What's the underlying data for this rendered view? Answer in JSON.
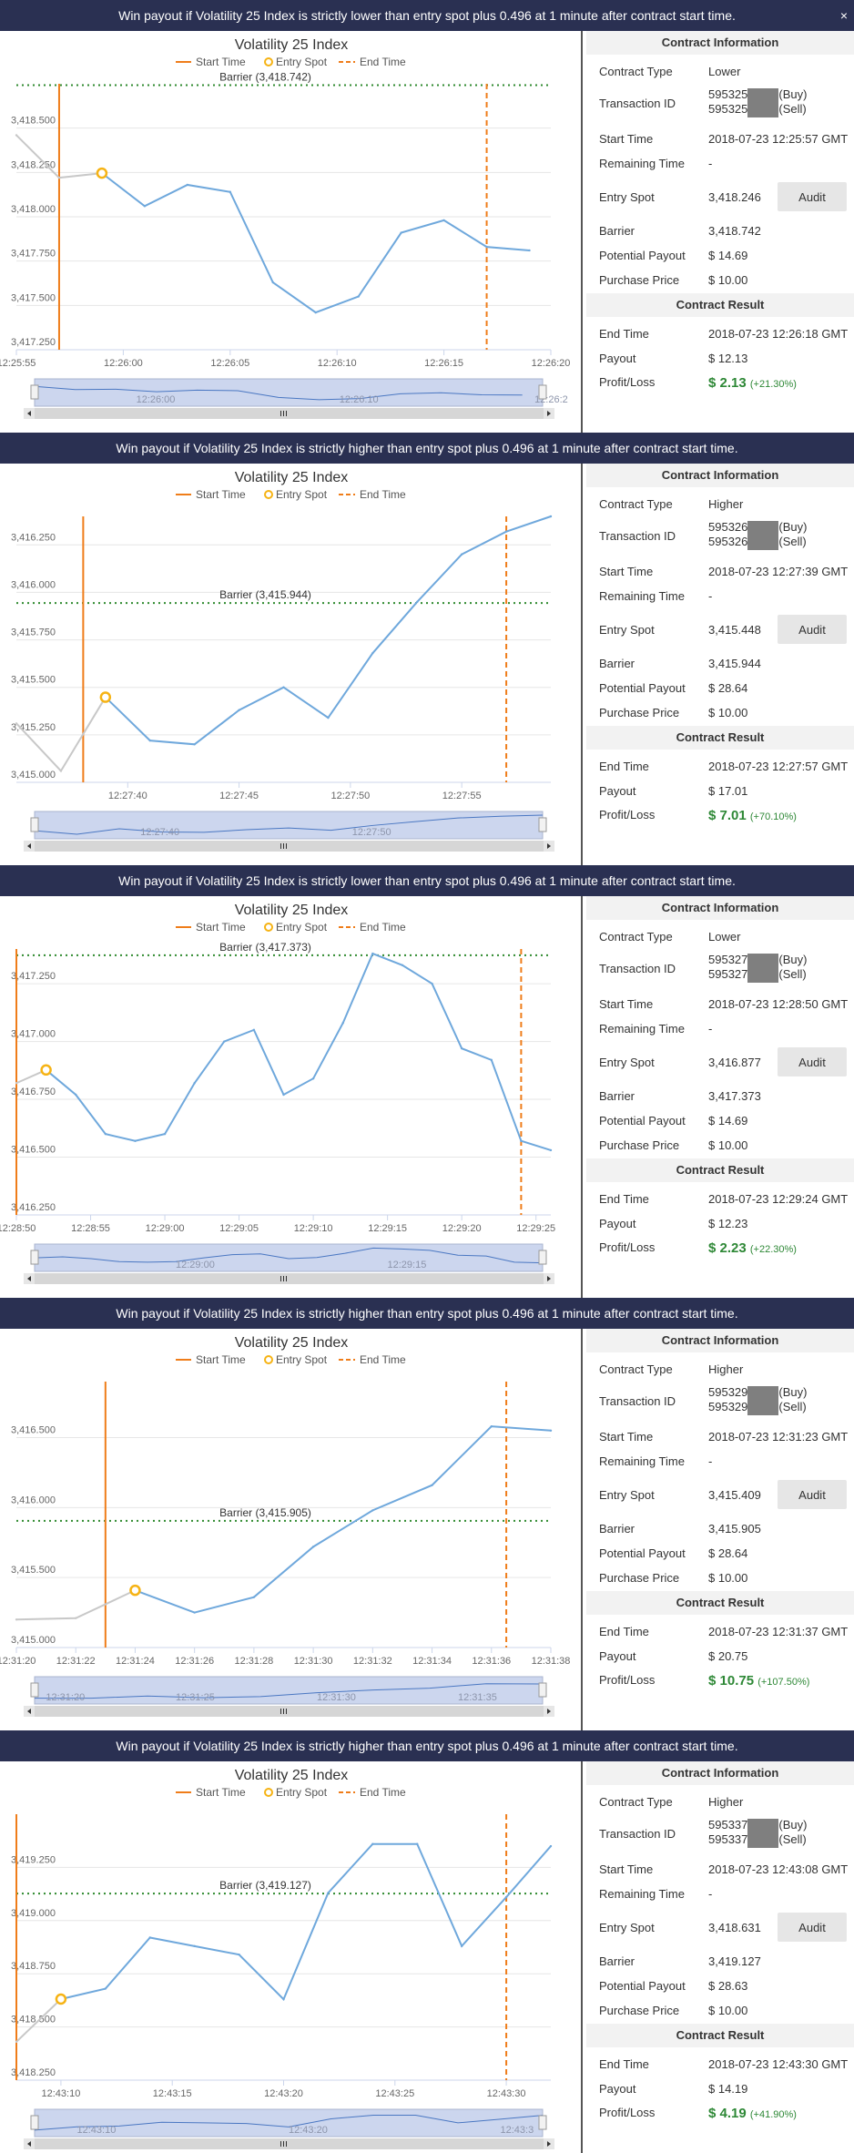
{
  "close_icon_glyph": "×",
  "colors": {
    "banner_bg": "#2a3052",
    "series": "#6fa8dc",
    "pre_series": "#c8c8c8",
    "start_line": "#ef7d1a",
    "end_line": "#ef7d1a",
    "barrier": "#2f8a2f",
    "entry_marker": "#f6b314",
    "profit": "#2e8836"
  },
  "contracts": [
    {
      "banner": "Win payout if Volatility 25 Index is strictly lower than entry spot plus 0.496 at 1 minute after contract start time.",
      "info_title": "Contract Information",
      "labels": {
        "contract_type": "Contract Type",
        "transaction_id": "Transaction ID",
        "start_time": "Start Time",
        "remaining_time": "Remaining Time",
        "entry_spot": "Entry Spot",
        "barrier": "Barrier",
        "potential_payout": "Potential Payout",
        "purchase_price": "Purchase Price",
        "end_time": "End Time",
        "payout": "Payout",
        "profit_loss": "Profit/Loss"
      },
      "contract_type": "Lower",
      "tx_buy_prefix": "595325",
      "tx_sell_prefix": "595325",
      "tx_buy_tag": "(Buy)",
      "tx_sell_tag": "(Sell)",
      "start_time": "2018-07-23 12:25:57 GMT",
      "remaining_time": "-",
      "entry_spot": "3,418.246",
      "audit_label": "Audit",
      "barrier": "3,418.742",
      "potential_payout": "$ 14.69",
      "purchase_price": "$ 10.00",
      "result_title": "Contract Result",
      "end_time": "2018-07-23 12:26:18 GMT",
      "payout": "$ 12.13",
      "profit": "$ 2.13",
      "profit_pct": "(+21.30%)",
      "chart_data": {
        "type": "line",
        "title": "Volatility 25 Index",
        "legend": [
          "Start Time",
          "Entry Spot",
          "End Time"
        ],
        "barrier_label": "Barrier (3,418.742)",
        "barrier": 3418.742,
        "x": [
          "12:25:55",
          "12:25:57",
          "12:25:59",
          "12:26:01",
          "12:26:03",
          "12:26:05",
          "12:26:07",
          "12:26:09",
          "12:26:11",
          "12:26:13",
          "12:26:15",
          "12:26:17",
          "12:26:19"
        ],
        "x_num": [
          0,
          2,
          4,
          6,
          8,
          10,
          12,
          14,
          16,
          18,
          20,
          22,
          24
        ],
        "y": [
          3418.46,
          3418.22,
          3418.246,
          3418.06,
          3418.18,
          3418.14,
          3417.63,
          3417.46,
          3417.55,
          3417.91,
          3417.98,
          3417.83,
          3417.81
        ],
        "pre_points": 3,
        "entry_index": 2,
        "start_x": 2,
        "end_x": 22,
        "xlim": [
          0,
          25
        ],
        "ylim": [
          3417.25,
          3418.75
        ],
        "y_ticks": [
          3417.25,
          3417.5,
          3417.75,
          3418.0,
          3418.25,
          3418.5
        ],
        "y_tick_labels": [
          "3,417.250",
          "3,417.500",
          "3,417.750",
          "3,418.000",
          "3,418.250",
          "3,418.500"
        ],
        "x_ticks": [
          0,
          5,
          10,
          15,
          20,
          25
        ],
        "x_tick_labels": [
          "12:25:55",
          "12:26:00",
          "12:26:05",
          "12:26:10",
          "12:26:15",
          "12:26:20"
        ],
        "nav_labels": [
          "12:26:00",
          "12:26:10",
          "12:26:2"
        ],
        "nav_label_x": [
          5,
          15,
          24.6
        ],
        "grid": true
      }
    },
    {
      "banner": "Win payout if Volatility 25 Index is strictly higher than entry spot plus 0.496 at 1 minute after contract start time.",
      "info_title": "Contract Information",
      "labels": {
        "contract_type": "Contract Type",
        "transaction_id": "Transaction ID",
        "start_time": "Start Time",
        "remaining_time": "Remaining Time",
        "entry_spot": "Entry Spot",
        "barrier": "Barrier",
        "potential_payout": "Potential Payout",
        "purchase_price": "Purchase Price",
        "end_time": "End Time",
        "payout": "Payout",
        "profit_loss": "Profit/Loss"
      },
      "contract_type": "Higher",
      "tx_buy_prefix": "595326",
      "tx_sell_prefix": "595326",
      "tx_buy_tag": "(Buy)",
      "tx_sell_tag": "(Sell)",
      "start_time": "2018-07-23 12:27:39 GMT",
      "remaining_time": "-",
      "entry_spot": "3,415.448",
      "audit_label": "Audit",
      "barrier": "3,415.944",
      "potential_payout": "$ 28.64",
      "purchase_price": "$ 10.00",
      "result_title": "Contract Result",
      "end_time": "2018-07-23 12:27:57 GMT",
      "payout": "$ 17.01",
      "profit": "$ 7.01",
      "profit_pct": "(+70.10%)",
      "chart_data": {
        "type": "line",
        "title": "Volatility 25 Index",
        "legend": [
          "Start Time",
          "Entry Spot",
          "End Time"
        ],
        "barrier_label": "Barrier (3,415.944)",
        "barrier": 3415.944,
        "x": [
          "12:27:35",
          "12:27:37",
          "12:27:39",
          "12:27:41",
          "12:27:43",
          "12:27:45",
          "12:27:47",
          "12:27:49",
          "12:27:51",
          "12:27:53",
          "12:27:55",
          "12:27:57",
          "12:27:59"
        ],
        "x_num": [
          0,
          2,
          4,
          6,
          8,
          10,
          12,
          14,
          16,
          18,
          20,
          22,
          24
        ],
        "y": [
          3415.31,
          3415.06,
          3415.448,
          3415.22,
          3415.2,
          3415.38,
          3415.5,
          3415.34,
          3415.68,
          3415.95,
          3416.2,
          3416.32,
          3416.4
        ],
        "pre_points": 3,
        "entry_index": 2,
        "start_x": 3,
        "end_x": 22,
        "xlim": [
          0,
          24
        ],
        "ylim": [
          3415.0,
          3416.4
        ],
        "y_ticks": [
          3415.0,
          3415.25,
          3415.5,
          3415.75,
          3416.0,
          3416.25
        ],
        "y_tick_labels": [
          "3,415.000",
          "3,415.250",
          "3,415.500",
          "3,415.750",
          "3,416.000",
          "3,416.250"
        ],
        "x_ticks": [
          5,
          10,
          15,
          20
        ],
        "x_tick_labels": [
          "12:27:40",
          "12:27:45",
          "12:27:50",
          "12:27:55"
        ],
        "nav_labels": [
          "12:27:40",
          "12:27:50"
        ],
        "nav_label_x": [
          5,
          15
        ],
        "grid": true
      }
    },
    {
      "banner": "Win payout if Volatility 25 Index is strictly lower than entry spot plus 0.496 at 1 minute after contract start time.",
      "info_title": "Contract Information",
      "labels": {
        "contract_type": "Contract Type",
        "transaction_id": "Transaction ID",
        "start_time": "Start Time",
        "remaining_time": "Remaining Time",
        "entry_spot": "Entry Spot",
        "barrier": "Barrier",
        "potential_payout": "Potential Payout",
        "purchase_price": "Purchase Price",
        "end_time": "End Time",
        "payout": "Payout",
        "profit_loss": "Profit/Loss"
      },
      "contract_type": "Lower",
      "tx_buy_prefix": "595327",
      "tx_sell_prefix": "595327",
      "tx_buy_tag": "(Buy)",
      "tx_sell_tag": "(Sell)",
      "start_time": "2018-07-23 12:28:50 GMT",
      "remaining_time": "-",
      "entry_spot": "3,416.877",
      "audit_label": "Audit",
      "barrier": "3,417.373",
      "potential_payout": "$ 14.69",
      "purchase_price": "$ 10.00",
      "result_title": "Contract Result",
      "end_time": "2018-07-23 12:29:24 GMT",
      "payout": "$ 12.23",
      "profit": "$ 2.23",
      "profit_pct": "(+22.30%)",
      "chart_data": {
        "type": "line",
        "title": "Volatility 25 Index",
        "legend": [
          "Start Time",
          "Entry Spot",
          "End Time"
        ],
        "barrier_label": "Barrier (3,417.373)",
        "barrier": 3417.373,
        "x": [
          "12:28:50",
          "12:28:52",
          "12:28:54",
          "12:28:56",
          "12:28:58",
          "12:29:00",
          "12:29:02",
          "12:29:04",
          "12:29:06",
          "12:29:08",
          "12:29:10",
          "12:29:12",
          "12:29:14",
          "12:29:16",
          "12:29:18",
          "12:29:20",
          "12:29:22",
          "12:29:24",
          "12:29:26"
        ],
        "x_num": [
          0,
          2,
          4,
          6,
          8,
          10,
          12,
          14,
          16,
          18,
          20,
          22,
          24,
          26,
          28,
          30,
          32,
          34,
          36
        ],
        "y": [
          3416.82,
          3416.877,
          3416.77,
          3416.6,
          3416.57,
          3416.6,
          3416.82,
          3417.0,
          3417.05,
          3416.77,
          3416.84,
          3417.08,
          3417.38,
          3417.33,
          3417.25,
          3416.97,
          3416.92,
          3416.57,
          3416.53
        ],
        "pre_points": 2,
        "entry_index": 1,
        "start_x": 0,
        "end_x": 34,
        "xlim": [
          0,
          36
        ],
        "ylim": [
          3416.25,
          3417.4
        ],
        "y_ticks": [
          3416.25,
          3416.5,
          3416.75,
          3417.0,
          3417.25
        ],
        "y_tick_labels": [
          "3,416.250",
          "3,416.500",
          "3,416.750",
          "3,417.000",
          "3,417.250"
        ],
        "x_ticks": [
          0,
          5,
          10,
          15,
          20,
          25,
          30,
          35
        ],
        "x_tick_labels": [
          "12:28:50",
          "12:28:55",
          "12:29:00",
          "12:29:05",
          "12:29:10",
          "12:29:15",
          "12:29:20",
          "12:29:25"
        ],
        "nav_labels": [
          "12:29:00",
          "12:29:15"
        ],
        "nav_label_x": [
          10,
          25
        ],
        "grid": true
      }
    },
    {
      "banner": "Win payout if Volatility 25 Index is strictly higher than entry spot plus 0.496 at 1 minute after contract start time.",
      "info_title": "Contract Information",
      "labels": {
        "contract_type": "Contract Type",
        "transaction_id": "Transaction ID",
        "start_time": "Start Time",
        "remaining_time": "Remaining Time",
        "entry_spot": "Entry Spot",
        "barrier": "Barrier",
        "potential_payout": "Potential Payout",
        "purchase_price": "Purchase Price",
        "end_time": "End Time",
        "payout": "Payout",
        "profit_loss": "Profit/Loss"
      },
      "contract_type": "Higher",
      "tx_buy_prefix": "595329",
      "tx_sell_prefix": "595329",
      "tx_buy_tag": "(Buy)",
      "tx_sell_tag": "(Sell)",
      "start_time": "2018-07-23 12:31:23 GMT",
      "remaining_time": "-",
      "entry_spot": "3,415.409",
      "audit_label": "Audit",
      "barrier": "3,415.905",
      "potential_payout": "$ 28.64",
      "purchase_price": "$ 10.00",
      "result_title": "Contract Result",
      "end_time": "2018-07-23 12:31:37 GMT",
      "payout": "$ 20.75",
      "profit": "$ 10.75",
      "profit_pct": "(+107.50%)",
      "chart_data": {
        "type": "line",
        "title": "Volatility 25 Index",
        "legend": [
          "Start Time",
          "Entry Spot",
          "End Time"
        ],
        "barrier_label": "Barrier (3,415.905)",
        "barrier": 3415.905,
        "x": [
          "12:31:20",
          "12:31:22",
          "12:31:24",
          "12:31:26",
          "12:31:28",
          "12:31:30",
          "12:31:32",
          "12:31:34",
          "12:31:36",
          "12:31:38"
        ],
        "x_num": [
          0,
          2,
          4,
          6,
          8,
          10,
          12,
          14,
          16,
          18
        ],
        "y": [
          3415.2,
          3415.21,
          3415.409,
          3415.25,
          3415.36,
          3415.72,
          3415.98,
          3416.16,
          3416.58,
          3416.55
        ],
        "pre_points": 3,
        "entry_index": 2,
        "start_x": 3,
        "end_x": 16.5,
        "xlim": [
          0,
          18
        ],
        "ylim": [
          3415.0,
          3416.9
        ],
        "y_ticks": [
          3415.0,
          3415.5,
          3416.0,
          3416.5
        ],
        "y_tick_labels": [
          "3,415.000",
          "3,415.500",
          "3,416.000",
          "3,416.500"
        ],
        "x_ticks": [
          0,
          2,
          4,
          6,
          8,
          10,
          12,
          14,
          16,
          18
        ],
        "x_tick_labels": [
          "12:31:20",
          "12:31:22",
          "12:31:24",
          "12:31:26",
          "12:31:28",
          "12:31:30",
          "12:31:32",
          "12:31:34",
          "12:31:36",
          "12:31:38"
        ],
        "nav_labels": [
          "12:31:20",
          "12:31:25",
          "12:31:30",
          "12:31:35"
        ],
        "nav_label_x": [
          0.4,
          5,
          10,
          15
        ],
        "grid": true
      }
    },
    {
      "banner": "Win payout if Volatility 25 Index is strictly higher than entry spot plus 0.496 at 1 minute after contract start time.",
      "info_title": "Contract Information",
      "labels": {
        "contract_type": "Contract Type",
        "transaction_id": "Transaction ID",
        "start_time": "Start Time",
        "remaining_time": "Remaining Time",
        "entry_spot": "Entry Spot",
        "barrier": "Barrier",
        "potential_payout": "Potential Payout",
        "purchase_price": "Purchase Price",
        "end_time": "End Time",
        "payout": "Payout",
        "profit_loss": "Profit/Loss"
      },
      "contract_type": "Higher",
      "tx_buy_prefix": "595337",
      "tx_sell_prefix": "595337",
      "tx_buy_tag": "(Buy)",
      "tx_sell_tag": "(Sell)",
      "start_time": "2018-07-23 12:43:08 GMT",
      "remaining_time": "-",
      "entry_spot": "3,418.631",
      "audit_label": "Audit",
      "barrier": "3,419.127",
      "potential_payout": "$ 28.63",
      "purchase_price": "$ 10.00",
      "result_title": "Contract Result",
      "end_time": "2018-07-23 12:43:30 GMT",
      "payout": "$ 14.19",
      "profit": "$ 4.19",
      "profit_pct": "(+41.90%)",
      "chart_data": {
        "type": "line",
        "title": "Volatility 25 Index",
        "legend": [
          "Start Time",
          "Entry Spot",
          "End Time"
        ],
        "barrier_label": "Barrier (3,419.127)",
        "barrier": 3419.127,
        "x": [
          "12:43:08",
          "12:43:10",
          "12:43:12",
          "12:43:14",
          "12:43:16",
          "12:43:18",
          "12:43:20",
          "12:43:22",
          "12:43:24",
          "12:43:26",
          "12:43:28",
          "12:43:30",
          "12:43:32"
        ],
        "x_num": [
          0,
          2,
          4,
          6,
          8,
          10,
          12,
          14,
          16,
          18,
          20,
          22,
          24
        ],
        "y": [
          3418.43,
          3418.631,
          3418.68,
          3418.92,
          3418.88,
          3418.84,
          3418.63,
          3419.13,
          3419.36,
          3419.36,
          3418.88,
          3419.11,
          3419.35
        ],
        "pre_points": 2,
        "entry_index": 1,
        "start_x": 0,
        "end_x": 22,
        "xlim": [
          0,
          24
        ],
        "ylim": [
          3418.25,
          3419.5
        ],
        "y_ticks": [
          3418.25,
          3418.5,
          3418.75,
          3419.0,
          3419.25
        ],
        "y_tick_labels": [
          "3,418.250",
          "3,418.500",
          "3,418.750",
          "3,419.000",
          "3,419.250"
        ],
        "x_ticks": [
          2,
          7,
          12,
          17,
          22
        ],
        "x_tick_labels": [
          "12:43:10",
          "12:43:15",
          "12:43:20",
          "12:43:25",
          "12:43:30"
        ],
        "nav_labels": [
          "12:43:10",
          "12:43:20",
          "12:43:3"
        ],
        "nav_label_x": [
          2,
          12,
          22
        ],
        "grid": true
      }
    }
  ]
}
